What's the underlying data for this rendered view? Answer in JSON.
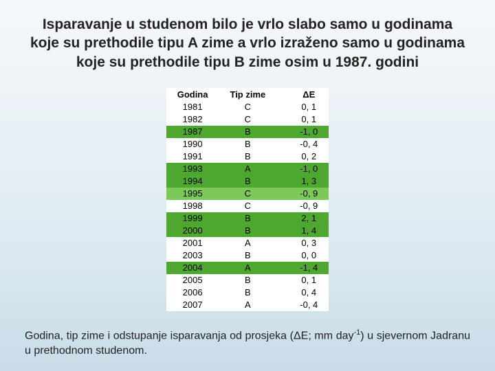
{
  "title": "Isparavanje u studenom bilo je vrlo slabo samo u godinama koje su prethodile tipu A zime a vrlo izraženo samo u godinama koje su prethodile tipu B zime osim u 1987. godini",
  "table": {
    "columns": [
      "Godina",
      "Tip zime",
      "ΔE"
    ],
    "rows": [
      {
        "cells": [
          "1981",
          "C",
          "0, 1"
        ],
        "highlight": ""
      },
      {
        "cells": [
          "1982",
          "C",
          "0, 1"
        ],
        "highlight": ""
      },
      {
        "cells": [
          "1987",
          "B",
          "-1, 0"
        ],
        "highlight": "hl"
      },
      {
        "cells": [
          "1990",
          "B",
          "-0, 4"
        ],
        "highlight": ""
      },
      {
        "cells": [
          "1991",
          "B",
          "0, 2"
        ],
        "highlight": ""
      },
      {
        "cells": [
          "1993",
          "A",
          "-1, 0"
        ],
        "highlight": "hl"
      },
      {
        "cells": [
          "1994",
          "B",
          "1, 3"
        ],
        "highlight": "hl"
      },
      {
        "cells": [
          "1995",
          "C",
          "-0, 9"
        ],
        "highlight": "hl-light"
      },
      {
        "cells": [
          "1998",
          "C",
          "-0, 9"
        ],
        "highlight": ""
      },
      {
        "cells": [
          "1999",
          "B",
          "2, 1"
        ],
        "highlight": "hl"
      },
      {
        "cells": [
          "2000",
          "B",
          "1, 4"
        ],
        "highlight": "hl"
      },
      {
        "cells": [
          "2001",
          "A",
          "0, 3"
        ],
        "highlight": ""
      },
      {
        "cells": [
          "2003",
          "B",
          "0, 0"
        ],
        "highlight": ""
      },
      {
        "cells": [
          "2004",
          "A",
          "-1, 4"
        ],
        "highlight": "hl"
      },
      {
        "cells": [
          "2005",
          "B",
          "0, 1"
        ],
        "highlight": ""
      },
      {
        "cells": [
          "2006",
          "B",
          "0, 4"
        ],
        "highlight": ""
      },
      {
        "cells": [
          "2007",
          "A",
          "-0, 4"
        ],
        "highlight": ""
      }
    ],
    "highlight_color": "#4ea82f",
    "highlight_light_color": "#7cc95a",
    "background_color": "#ffffff",
    "font_size": 13
  },
  "caption_prefix": "Godina, tip zime i odstupanje isparavanja od prosjeka (ΔE; mm day",
  "caption_sup": "-1",
  "caption_suffix": ") u sjevernom Jadranu u prethodnom studenom.",
  "colors": {
    "bg_top": "#f5f8fb",
    "bg_bottom": "#c8dce8",
    "text": "#222222"
  }
}
